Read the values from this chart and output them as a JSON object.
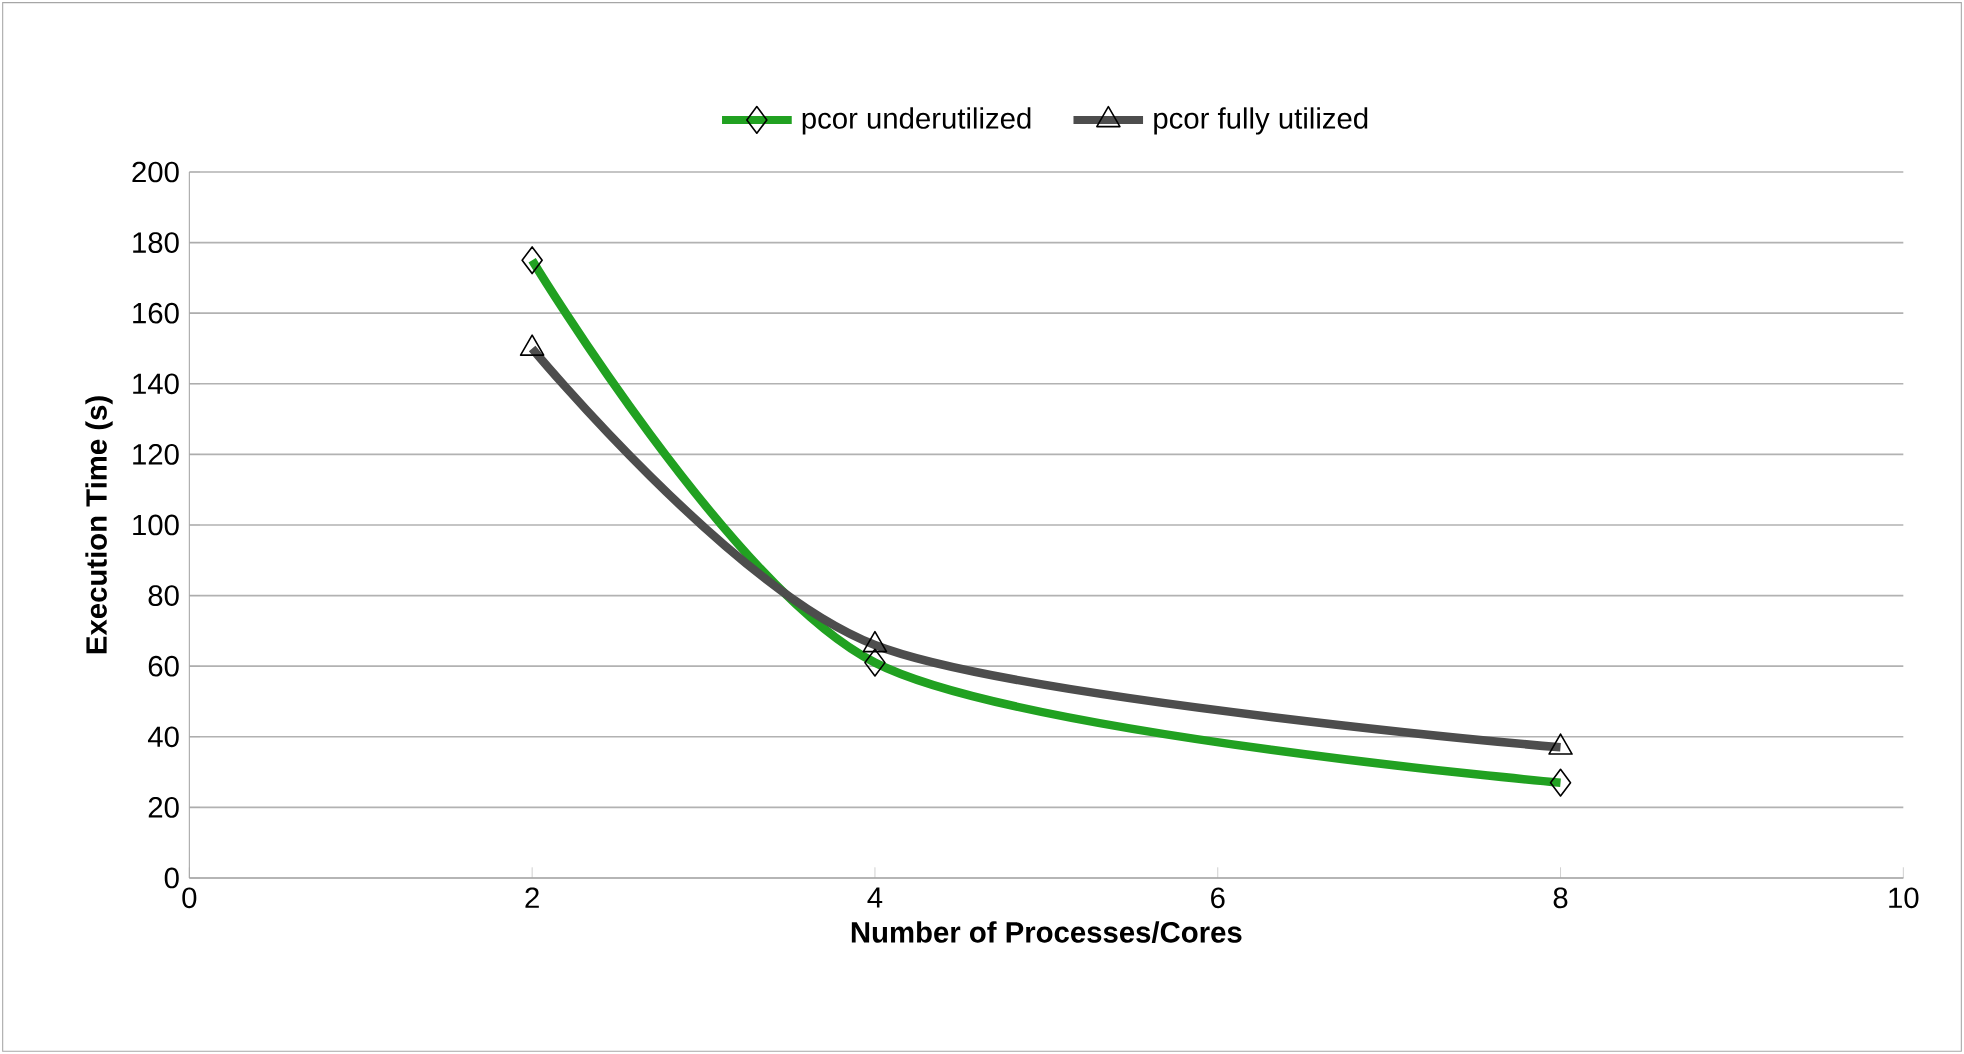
{
  "chart_data": {
    "type": "line",
    "xlabel": "Number of Processes/Cores",
    "ylabel": "Execution Time (s)",
    "xlim": [
      0,
      10
    ],
    "xticks": [
      0,
      2,
      4,
      6,
      8,
      10
    ],
    "ylim": [
      0,
      200
    ],
    "yticks": [
      0,
      20,
      40,
      60,
      80,
      100,
      120,
      140,
      160,
      180,
      200
    ],
    "grid": "y",
    "legend": "top",
    "series": [
      {
        "name": "pcor underutilized",
        "color": "#21a121",
        "marker": "diamond",
        "x": [
          2,
          4,
          8
        ],
        "values": [
          175,
          61,
          27
        ]
      },
      {
        "name": "pcor fully utilized",
        "color": "#4d4d4d",
        "marker": "triangle",
        "x": [
          2,
          4,
          8
        ],
        "values": [
          150,
          66,
          37
        ]
      }
    ]
  }
}
